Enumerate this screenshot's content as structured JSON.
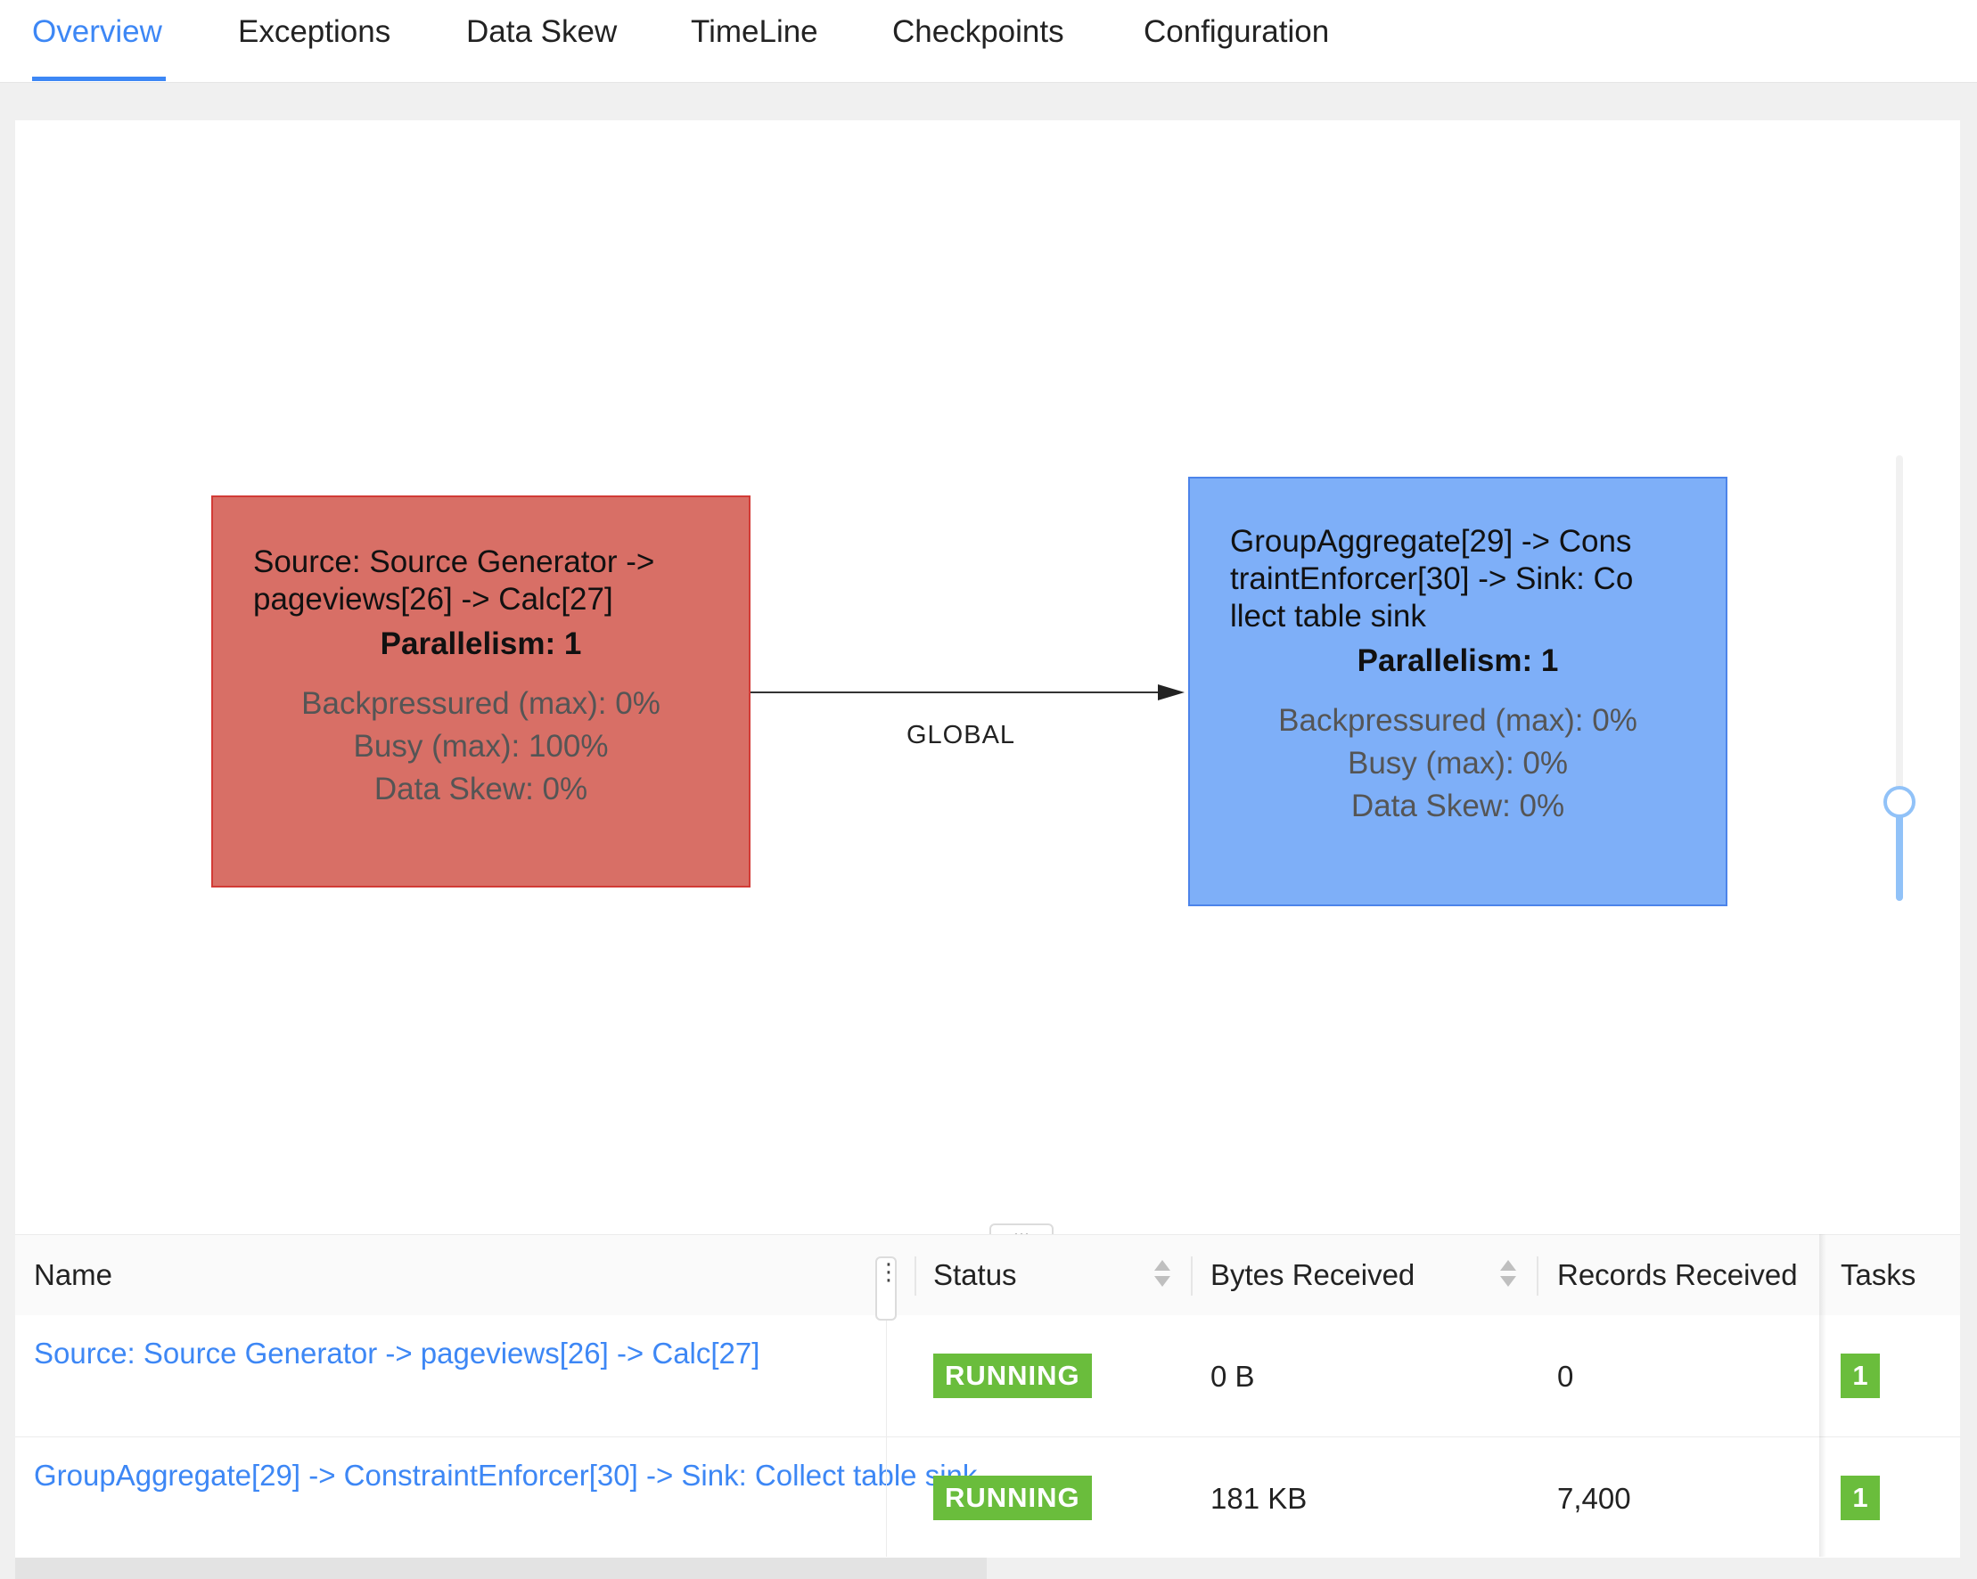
{
  "tabs": [
    {
      "label": "Overview",
      "active": true
    },
    {
      "label": "Exceptions",
      "active": false
    },
    {
      "label": "Data Skew",
      "active": false
    },
    {
      "label": "TimeLine",
      "active": false
    },
    {
      "label": "Checkpoints",
      "active": false
    },
    {
      "label": "Configuration",
      "active": false
    }
  ],
  "graph": {
    "nodes": [
      {
        "title": "Source: Source Generator ->\npageviews[26] -> Calc[27]",
        "parallelism": "Parallelism: 1",
        "backpressured": "Backpressured (max): 0%",
        "busy": "Busy (max): 100%",
        "data_skew": "Data Skew: 0%",
        "color": "#d86f66"
      },
      {
        "title": "GroupAggregate[29] -> Cons\ntraintEnforcer[30] -> Sink: Co\nllect table sink",
        "parallelism": "Parallelism: 1",
        "backpressured": "Backpressured (max): 0%",
        "busy": "Busy (max): 0%",
        "data_skew": "Data Skew: 0%",
        "color": "#7eaff8"
      }
    ],
    "edge_label": "GLOBAL",
    "zoom_level": 0.22
  },
  "splitter_label": "...",
  "table": {
    "columns": [
      "Name",
      "Status",
      "Bytes Received",
      "Records Received",
      "Tasks"
    ],
    "rows": [
      {
        "name": "Source: Source Generator -> pageviews[26] -> Calc[27]",
        "status": "RUNNING",
        "bytes_received": "0 B",
        "records_received": "0",
        "tasks": "1"
      },
      {
        "name": "GroupAggregate[29] -> ConstraintEnforcer[30] -> Sink: Collect table sink",
        "status": "RUNNING",
        "bytes_received": "181 KB",
        "records_received": "7,400",
        "tasks": "1"
      }
    ]
  },
  "colors": {
    "accent": "#3d87f5",
    "running": "#6abd3c",
    "busy_node": "#d86f66",
    "idle_node": "#7eaff8"
  }
}
